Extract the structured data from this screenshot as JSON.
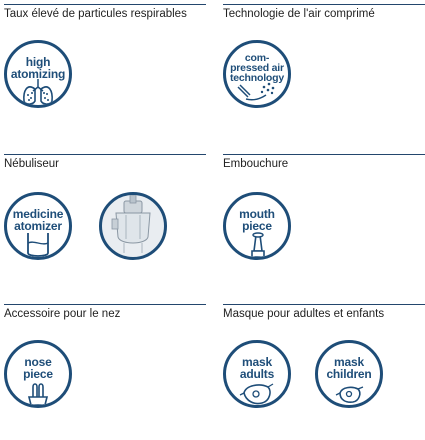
{
  "sections": [
    {
      "title": "Taux élevé de particules respirables",
      "icons": [
        {
          "lines": [
            "high",
            "atomizing"
          ],
          "icon": "lungs-icon"
        }
      ]
    },
    {
      "title": "Technologie de l'air comprimé",
      "icons": [
        {
          "lines": [
            "com-",
            "pressed air",
            "technology"
          ],
          "icon": "airflow-icon"
        }
      ]
    },
    {
      "title": "Nébuliseur",
      "icons": [
        {
          "lines": [
            "medicine",
            "atomizer"
          ],
          "icon": "medicine-chamber-icon"
        },
        {
          "photo": "nebulizer-photo"
        }
      ]
    },
    {
      "title": "Embouchure",
      "icons": [
        {
          "lines": [
            "mouth",
            "piece"
          ],
          "icon": "mouthpiece-icon"
        }
      ]
    },
    {
      "title": "Accessoire pour le nez",
      "icons": [
        {
          "lines": [
            "nose",
            "piece"
          ],
          "icon": "nose-piece-icon"
        }
      ]
    },
    {
      "title": "Masque pour adultes et enfants",
      "icons": [
        {
          "lines": [
            "mask",
            "adults"
          ],
          "icon": "mask-adult-icon"
        },
        {
          "lines": [
            "mask",
            "children"
          ],
          "icon": "mask-child-icon"
        }
      ]
    }
  ],
  "colors": {
    "accent": "#1e4d78",
    "rule": "#23466d",
    "text": "#222222"
  }
}
